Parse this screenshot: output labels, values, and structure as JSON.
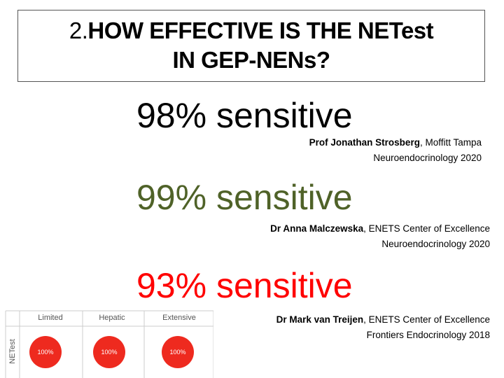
{
  "title": {
    "number": "2.",
    "lines": [
      "HOW EFFECTIVE IS THE NETest",
      "IN GEP-NENs?"
    ]
  },
  "findings": [
    {
      "headline": "98% sensitive",
      "color": "#000000",
      "author": "Prof Jonathan Strosberg",
      "affiliation": ", Moffitt Tampa",
      "journal": "Neuroendocrinology 2020"
    },
    {
      "headline": "99% sensitive",
      "color": "#4f6228",
      "author": "Dr Anna Malczewska",
      "affiliation": ", ENETS Center of Excellence",
      "journal": "Neuroendocrinology 2020"
    },
    {
      "headline": "93% sensitive",
      "color": "#ff0000",
      "author": "Dr Mark van Treijen",
      "affiliation": ", ENETS Center of Excellence",
      "journal": "Frontiers Endocrinology 2018"
    }
  ],
  "table": {
    "columns": [
      "Limited",
      "Hepatic",
      "Extensive"
    ],
    "row_label": "NETest",
    "values": [
      "100%",
      "100%",
      "100%"
    ]
  }
}
